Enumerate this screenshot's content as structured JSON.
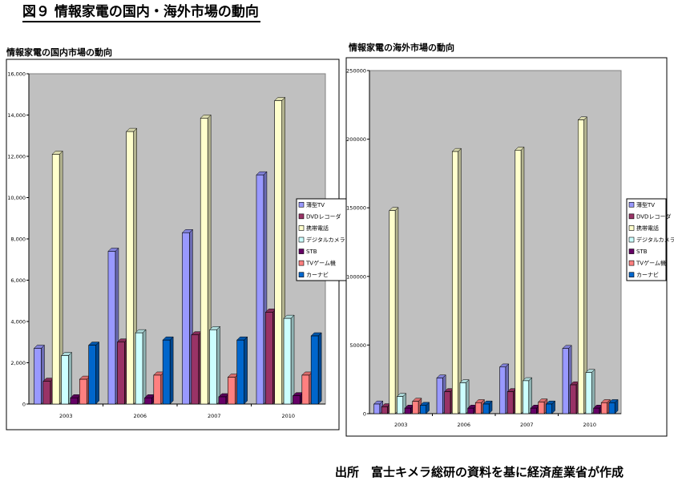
{
  "figure_title": "図９ 情報家電の国内・海外市場の動向",
  "footer": "出所　富士キメラ総研の資料を基に経済産業省が作成",
  "chart_data": [
    {
      "type": "bar",
      "title": "情報家電の国内市場の動向",
      "categories": [
        "2003",
        "2006",
        "2007",
        "2010"
      ],
      "ylim": [
        0,
        16000
      ],
      "yticks": [
        "0",
        "2,000",
        "4,000",
        "6,000",
        "8,000",
        "10,000",
        "12,000",
        "14,000",
        "16,000"
      ],
      "ytick_values": [
        0,
        2000,
        4000,
        6000,
        8000,
        10000,
        12000,
        14000,
        16000
      ],
      "legend_position": "right",
      "series": [
        {
          "name": "薄型TV",
          "color": "#9999FF",
          "values": [
            2700,
            7400,
            8300,
            11100
          ]
        },
        {
          "name": "DVDレコーダ",
          "color": "#993366",
          "values": [
            1100,
            3000,
            3350,
            4450
          ]
        },
        {
          "name": "携帯電話",
          "color": "#FFFFCC",
          "values": [
            12100,
            13200,
            13850,
            14700
          ]
        },
        {
          "name": "デジタルカメラ",
          "color": "#CCFFFF",
          "values": [
            2350,
            3450,
            3600,
            4150
          ]
        },
        {
          "name": "STB",
          "color": "#660066",
          "values": [
            300,
            300,
            350,
            400
          ]
        },
        {
          "name": "TVゲーム機",
          "color": "#FF8080",
          "values": [
            1200,
            1400,
            1300,
            1400
          ]
        },
        {
          "name": "カーナビ",
          "color": "#0066CC",
          "values": [
            2850,
            3100,
            3100,
            3300
          ]
        }
      ]
    },
    {
      "type": "bar",
      "title": "情報家電の海外市場の動向",
      "categories": [
        "2003",
        "2006",
        "2007",
        "2010"
      ],
      "ylim": [
        0,
        250000
      ],
      "yticks": [
        "0",
        "50000",
        "100000",
        "150000",
        "200000",
        "250000"
      ],
      "ytick_values": [
        0,
        50000,
        100000,
        150000,
        200000,
        250000
      ],
      "legend_position": "right",
      "series": [
        {
          "name": "薄型TV",
          "color": "#9999FF",
          "values": [
            7000,
            26000,
            34000,
            47500
          ]
        },
        {
          "name": "DVDレコーダ",
          "color": "#993366",
          "values": [
            5000,
            16000,
            16000,
            21000
          ]
        },
        {
          "name": "携帯電話",
          "color": "#FFFFCC",
          "values": [
            148000,
            191000,
            192000,
            214000
          ]
        },
        {
          "name": "デジタルカメラ",
          "color": "#CCFFFF",
          "values": [
            12500,
            22500,
            24000,
            30000
          ]
        },
        {
          "name": "STB",
          "color": "#660066",
          "values": [
            4000,
            4000,
            4000,
            4000
          ]
        },
        {
          "name": "TVゲーム機",
          "color": "#FF8080",
          "values": [
            9000,
            8000,
            8500,
            8000
          ]
        },
        {
          "name": "カーナビ",
          "color": "#0066CC",
          "values": [
            6000,
            7000,
            7000,
            8000
          ]
        }
      ]
    }
  ]
}
